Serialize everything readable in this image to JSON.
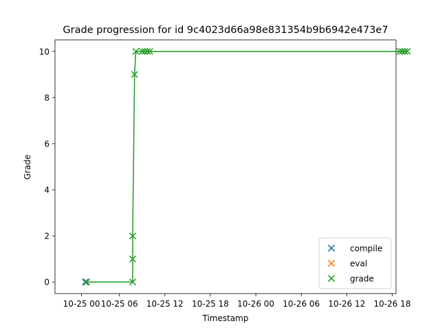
{
  "chart_data": {
    "type": "scatter",
    "title": "Grade progression for id 9c4023d66a98e831354b9b6942e473e7",
    "xlabel": "Timestamp",
    "ylabel": "Grade",
    "x_ticks": [
      {
        "x": "10-24 19:00",
        "label": "10-25 00"
      },
      {
        "x": "10-25 00:00",
        "label": "10-25 06"
      },
      {
        "x": "10-25 06:00",
        "label": "10-25 12"
      },
      {
        "x": "10-25 12:00",
        "label": "10-25 18"
      },
      {
        "x": "10-25 18:00",
        "label": "10-26 00"
      },
      {
        "x": "10-26 00:00",
        "label": "10-26 06"
      },
      {
        "x": "10-26 06:00",
        "label": "10-26 12"
      },
      {
        "x": "10-26 12:00",
        "label": "10-26 18"
      }
    ],
    "xlim": [
      "10-24 15:30",
      "10-26 12:30"
    ],
    "y_ticks": [
      0,
      2,
      4,
      6,
      8,
      10
    ],
    "ylim": [
      -0.5,
      10.5
    ],
    "grid": false,
    "legend_position": "lower-right",
    "series": [
      {
        "name": "compile",
        "color": "#1f77b4",
        "marker": "x",
        "line": false,
        "points": [
          {
            "x": "10-24 19:30",
            "y": 0
          }
        ]
      },
      {
        "name": "eval",
        "color": "#ff7f0e",
        "marker": "x",
        "line": false,
        "points": [
          {
            "x": "10-24 19:40",
            "y": 0
          }
        ]
      },
      {
        "name": "grade",
        "color": "#2ca02c",
        "marker": "x",
        "line": true,
        "points": [
          {
            "x": "10-24 19:40",
            "y": 0
          },
          {
            "x": "10-25 01:45",
            "y": 0
          },
          {
            "x": "10-25 01:45",
            "y": 1
          },
          {
            "x": "10-25 01:45",
            "y": 2
          },
          {
            "x": "10-25 02:00",
            "y": 9
          },
          {
            "x": "10-25 02:10",
            "y": 10
          },
          {
            "x": "10-25 03:00",
            "y": 10
          },
          {
            "x": "10-25 03:20",
            "y": 10
          },
          {
            "x": "10-25 03:40",
            "y": 10
          },
          {
            "x": "10-25 04:00",
            "y": 10
          },
          {
            "x": "10-26 13:00",
            "y": 10
          },
          {
            "x": "10-26 13:20",
            "y": 10
          },
          {
            "x": "10-26 13:40",
            "y": 10
          },
          {
            "x": "10-26 14:00",
            "y": 10
          }
        ]
      }
    ]
  }
}
